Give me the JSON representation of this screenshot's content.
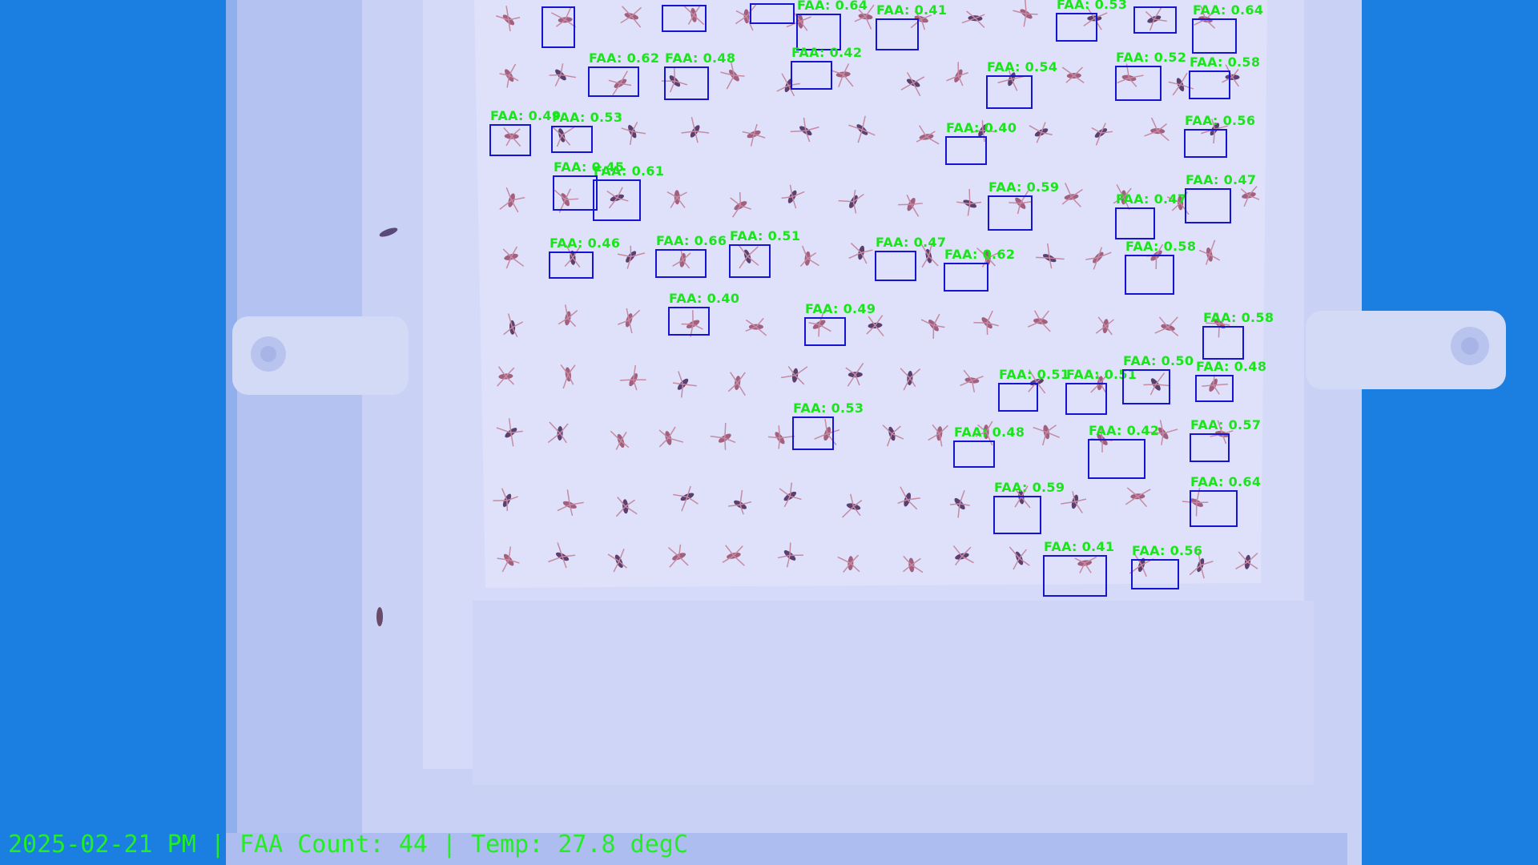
{
  "status_bar": {
    "date": "2025-02-21 PM",
    "sep1": " | ",
    "count_label": "FAA Count: ",
    "count": "44",
    "sep2": " | ",
    "temp": "Temp: 27.8 degC"
  },
  "detection_class": "FAA",
  "colors": {
    "background": "#1a7fe0",
    "tray": "#c9d2f5",
    "paper": "#dfe1fb",
    "box": "#1414d2",
    "label": "#19e619",
    "status_text": "#22ee22",
    "insect": "#b06e8a"
  },
  "detections": [
    {
      "label": "FAA: 0.64"
    },
    {
      "label": "FAA: 0.41"
    },
    {
      "label": "FAA: 0.53"
    },
    {
      "label": "FAA: 0.64"
    },
    {
      "label": "FAA: 0.62"
    },
    {
      "label": "FAA: 0.48"
    },
    {
      "label": "FAA: 0.42"
    },
    {
      "label": "FAA: 0.54"
    },
    {
      "label": "FAA: 0.52"
    },
    {
      "label": "FAA: 0.58"
    },
    {
      "label": "FAA: 0.49"
    },
    {
      "label": "FAA: 0.53"
    },
    {
      "label": "FAA: 0.40"
    },
    {
      "label": "FAA: 0.56"
    },
    {
      "label": "FAA: 0.45"
    },
    {
      "label": "FAA: 0.61"
    },
    {
      "label": "FAA: 0.59"
    },
    {
      "label": "FAA: 0.47"
    },
    {
      "label": "FAA: 0.47"
    },
    {
      "label": "FAA: 0.46"
    },
    {
      "label": "FAA: 0.66"
    },
    {
      "label": "FAA: 0.51"
    },
    {
      "label": "FAA: 0.47"
    },
    {
      "label": "FAA: 0.62"
    },
    {
      "label": "FAA: 0.58"
    },
    {
      "label": "FAA: 0.40"
    },
    {
      "label": "FAA: 0.49"
    },
    {
      "label": "FAA: 0.58"
    },
    {
      "label": "FAA: 0.51"
    },
    {
      "label": "FAA: 0.51"
    },
    {
      "label": "FAA: 0.50"
    },
    {
      "label": "FAA: 0.48"
    },
    {
      "label": "FAA: 0.53"
    },
    {
      "label": "FAA: 0.48"
    },
    {
      "label": "FAA: 0.42"
    },
    {
      "label": "FAA: 0.57"
    },
    {
      "label": "FAA: 0.59"
    },
    {
      "label": "FAA: 0.64"
    },
    {
      "label": "FAA: 0.41"
    },
    {
      "label": "FAA: 0.56"
    },
    {
      "label": ""
    },
    {
      "label": ""
    },
    {
      "label": ""
    },
    {
      "label": ""
    }
  ]
}
